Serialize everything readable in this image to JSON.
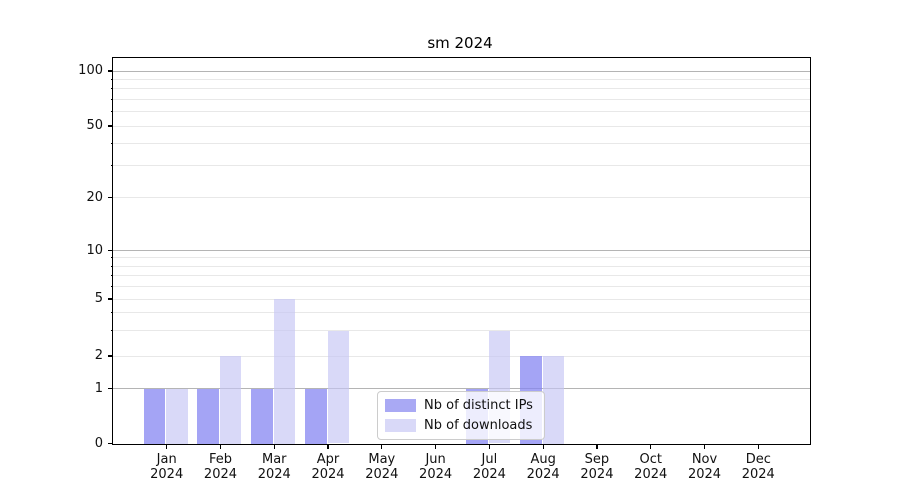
{
  "title": "sm 2024",
  "legend": {
    "items": [
      {
        "label": "Nb of distinct IPs"
      },
      {
        "label": "Nb of downloads"
      }
    ]
  },
  "y_axis": {
    "tick_labels": [
      "100",
      "50",
      "20",
      "10",
      "5",
      "2",
      "1",
      "0"
    ]
  },
  "x_axis": {
    "year": "2024",
    "months": [
      "Jan",
      "Feb",
      "Mar",
      "Apr",
      "May",
      "Jun",
      "Jul",
      "Aug",
      "Sep",
      "Oct",
      "Nov",
      "Dec"
    ]
  },
  "chart_data": {
    "type": "bar",
    "title": "sm 2024",
    "categories": [
      "Jan 2024",
      "Feb 2024",
      "Mar 2024",
      "Apr 2024",
      "May 2024",
      "Jun 2024",
      "Jul 2024",
      "Aug 2024",
      "Sep 2024",
      "Oct 2024",
      "Nov 2024",
      "Dec 2024"
    ],
    "series": [
      {
        "name": "Nb of distinct IPs",
        "color": "#a9a9f4",
        "color_rgba": "rgba(134,134,241,0.75)",
        "values": [
          1,
          1,
          1,
          1,
          0,
          0,
          1,
          2,
          0,
          0,
          0,
          0
        ]
      },
      {
        "name": "Nb of downloads",
        "color": "#d9d9f8",
        "color_rgba": "rgba(198,198,244,0.66)",
        "values": [
          1,
          2,
          5,
          3,
          0,
          0,
          3,
          2,
          0,
          0,
          0,
          0
        ]
      }
    ],
    "yscale": "symlog",
    "ylim": [
      0,
      100
    ],
    "y_ticks": [
      0,
      1,
      2,
      5,
      10,
      20,
      50,
      100
    ],
    "y_minor_ticks": [
      3,
      4,
      6,
      7,
      8,
      9,
      30,
      40,
      60,
      70,
      80,
      90
    ],
    "grid": "horizontal",
    "legend_position": "lower center",
    "colors": {
      "major_grid": "#b4b4b4",
      "minor_grid": "#e8e8e8",
      "spine": "#000000",
      "text": "#111111",
      "background": "#ffffff"
    }
  }
}
